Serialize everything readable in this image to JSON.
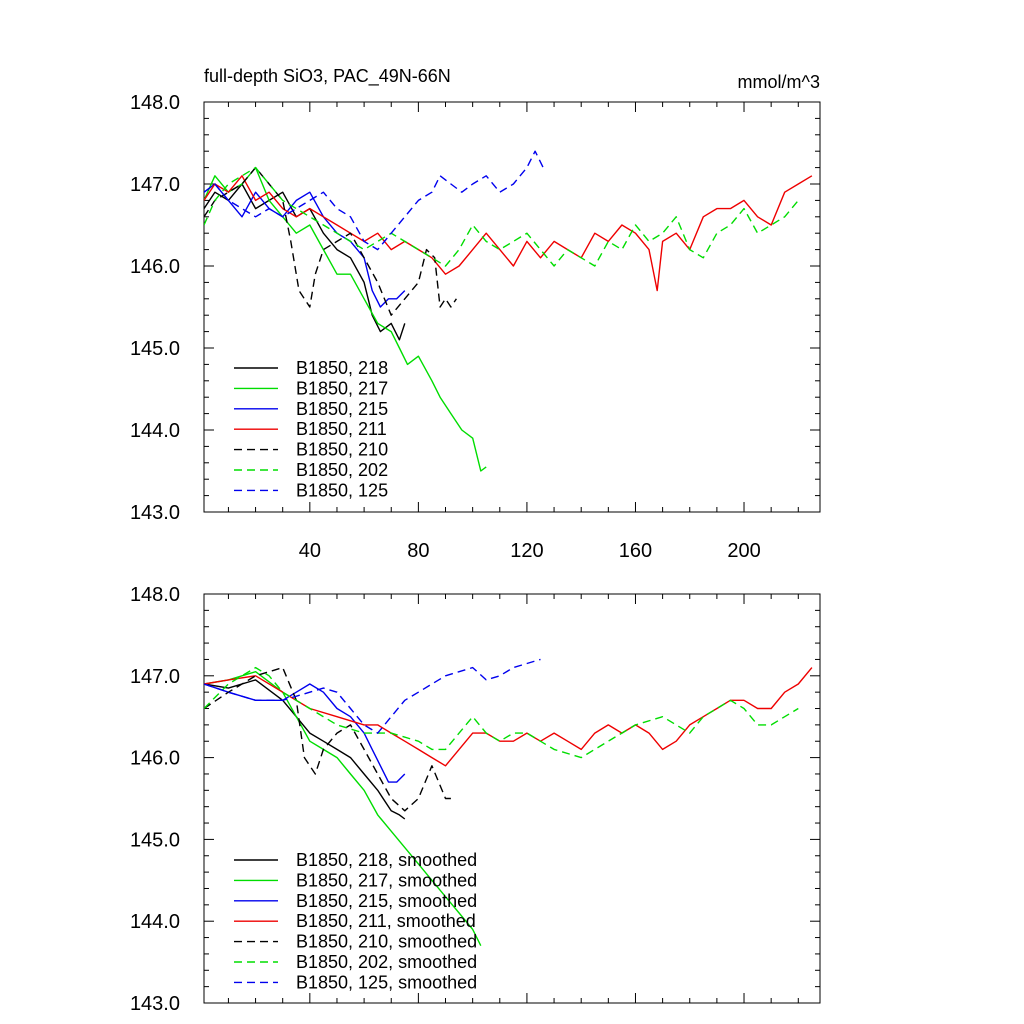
{
  "chart_data": [
    {
      "type": "line",
      "title": "full-depth SiO3, PAC_49N-66N",
      "units_label": "mmol/m^3",
      "xlim": [
        1,
        228
      ],
      "ylim": [
        143.0,
        148.0
      ],
      "x_ticks": [
        40,
        80,
        120,
        160,
        200
      ],
      "x_tick_labels": [
        "40",
        "80",
        "120",
        "160",
        "200"
      ],
      "y_ticks": [
        143.0,
        144.0,
        145.0,
        146.0,
        147.0,
        148.0
      ],
      "y_tick_labels": [
        "143.0",
        "144.0",
        "145.0",
        "146.0",
        "147.0",
        "148.0"
      ],
      "legend_position": "bottom-left",
      "series": [
        {
          "name": "B1850, 218",
          "color": "#000000",
          "dash": "solid",
          "x": [
            1,
            5,
            10,
            15,
            20,
            25,
            30,
            35,
            40,
            45,
            50,
            55,
            60,
            63,
            66,
            70,
            73,
            75
          ],
          "values": [
            146.7,
            146.9,
            146.8,
            147.0,
            146.7,
            146.8,
            146.9,
            146.6,
            146.7,
            146.4,
            146.2,
            146.1,
            145.8,
            145.4,
            145.2,
            145.3,
            145.1,
            145.3
          ]
        },
        {
          "name": "B1850, 217",
          "color": "#00dd00",
          "dash": "solid",
          "x": [
            1,
            5,
            10,
            15,
            20,
            25,
            30,
            35,
            40,
            45,
            50,
            55,
            60,
            65,
            70,
            73,
            76,
            80,
            85,
            88,
            92,
            96,
            100,
            103,
            105
          ],
          "values": [
            146.8,
            147.1,
            146.9,
            147.0,
            147.2,
            146.8,
            146.6,
            146.4,
            146.5,
            146.2,
            145.9,
            145.9,
            145.6,
            145.3,
            145.2,
            145.0,
            144.8,
            144.9,
            144.6,
            144.4,
            144.2,
            144.0,
            143.9,
            143.5,
            143.55
          ]
        },
        {
          "name": "B1850, 215",
          "color": "#0000ee",
          "dash": "solid",
          "x": [
            1,
            5,
            10,
            15,
            20,
            25,
            30,
            35,
            40,
            45,
            50,
            55,
            60,
            63,
            66,
            69,
            72,
            75
          ],
          "values": [
            146.9,
            147.0,
            146.8,
            146.6,
            146.9,
            146.7,
            146.6,
            146.8,
            146.9,
            146.6,
            146.4,
            146.3,
            146.1,
            145.7,
            145.5,
            145.6,
            145.6,
            145.7
          ]
        },
        {
          "name": "B1850, 211",
          "color": "#ee0000",
          "dash": "solid",
          "x": [
            1,
            5,
            10,
            15,
            20,
            25,
            30,
            35,
            40,
            45,
            50,
            55,
            60,
            65,
            70,
            75,
            80,
            85,
            90,
            95,
            100,
            105,
            110,
            115,
            120,
            125,
            130,
            135,
            140,
            145,
            150,
            155,
            160,
            165,
            168,
            170,
            175,
            180,
            185,
            190,
            195,
            200,
            205,
            210,
            215,
            220,
            225
          ],
          "values": [
            146.8,
            147.0,
            146.9,
            147.1,
            146.8,
            146.9,
            146.7,
            146.6,
            146.7,
            146.6,
            146.5,
            146.4,
            146.3,
            146.4,
            146.2,
            146.3,
            146.2,
            146.1,
            145.9,
            146.0,
            146.2,
            146.4,
            146.2,
            146.0,
            146.3,
            146.1,
            146.3,
            146.2,
            146.1,
            146.4,
            146.3,
            146.5,
            146.4,
            146.2,
            145.7,
            146.3,
            146.4,
            146.2,
            146.6,
            146.7,
            146.7,
            146.8,
            146.6,
            146.5,
            146.9,
            147.0,
            147.1
          ]
        },
        {
          "name": "B1850, 210",
          "color": "#000000",
          "dash": "dashed",
          "x": [
            1,
            5,
            10,
            15,
            20,
            25,
            30,
            33,
            36,
            40,
            42,
            45,
            50,
            55,
            60,
            65,
            70,
            75,
            80,
            83,
            86,
            88,
            90,
            92,
            94
          ],
          "values": [
            146.6,
            146.8,
            146.9,
            147.0,
            147.2,
            147.0,
            146.8,
            146.3,
            145.7,
            145.5,
            145.9,
            146.2,
            146.3,
            146.4,
            146.1,
            145.8,
            145.4,
            145.6,
            145.8,
            146.2,
            146.1,
            145.5,
            145.6,
            145.5,
            145.6
          ]
        },
        {
          "name": "B1850, 202",
          "color": "#00dd00",
          "dash": "dashed",
          "x": [
            1,
            5,
            10,
            15,
            20,
            25,
            30,
            35,
            40,
            45,
            50,
            55,
            60,
            65,
            70,
            75,
            80,
            85,
            90,
            95,
            100,
            105,
            110,
            115,
            120,
            125,
            130,
            135,
            140,
            145,
            150,
            155,
            160,
            165,
            170,
            175,
            180,
            185,
            190,
            195,
            200,
            205,
            210,
            215,
            220
          ],
          "values": [
            146.5,
            146.8,
            147.0,
            147.1,
            147.2,
            147.0,
            146.8,
            146.7,
            146.6,
            146.5,
            146.4,
            146.3,
            146.2,
            146.3,
            146.4,
            146.3,
            146.2,
            146.1,
            146.0,
            146.2,
            146.5,
            146.3,
            146.2,
            146.3,
            146.4,
            146.2,
            146.0,
            146.2,
            146.1,
            146.0,
            146.3,
            146.2,
            146.5,
            146.3,
            146.4,
            146.6,
            146.2,
            146.1,
            146.4,
            146.5,
            146.7,
            146.4,
            146.5,
            146.6,
            146.8
          ]
        },
        {
          "name": "B1850, 125",
          "color": "#0000ee",
          "dash": "dashed",
          "x": [
            1,
            5,
            10,
            15,
            20,
            25,
            30,
            35,
            40,
            45,
            50,
            55,
            60,
            65,
            70,
            75,
            80,
            85,
            88,
            92,
            96,
            100,
            105,
            110,
            115,
            120,
            123,
            126
          ],
          "values": [
            146.9,
            147.0,
            146.8,
            146.7,
            146.6,
            146.7,
            146.6,
            146.7,
            146.8,
            146.9,
            146.7,
            146.6,
            146.3,
            146.2,
            146.4,
            146.6,
            146.8,
            146.9,
            147.1,
            147.0,
            146.9,
            147.0,
            147.1,
            146.9,
            147.0,
            147.2,
            147.4,
            147.2
          ]
        }
      ]
    },
    {
      "type": "line",
      "title": "",
      "xlim": [
        1,
        228
      ],
      "ylim": [
        143.0,
        148.0
      ],
      "x_ticks": [
        40,
        80,
        120,
        160,
        200
      ],
      "y_ticks": [
        143.0,
        144.0,
        145.0,
        146.0,
        147.0,
        148.0
      ],
      "y_tick_labels": [
        "143.0",
        "144.0",
        "145.0",
        "146.0",
        "147.0",
        "148.0"
      ],
      "legend_position": "bottom-left",
      "series": [
        {
          "name": "B1850, 218, smoothed",
          "color": "#000000",
          "dash": "solid",
          "x": [
            1,
            10,
            20,
            30,
            35,
            40,
            45,
            50,
            55,
            60,
            65,
            70,
            73,
            75
          ],
          "values": [
            146.9,
            146.85,
            146.95,
            146.7,
            146.5,
            146.3,
            146.2,
            146.1,
            146.0,
            145.8,
            145.6,
            145.35,
            145.3,
            145.25
          ]
        },
        {
          "name": "B1850, 217",
          "color": "#00dd00",
          "dash": "solid",
          "display_name": "B1850, 217, smoothed",
          "x": [
            1,
            10,
            20,
            30,
            35,
            40,
            45,
            50,
            55,
            60,
            65,
            70,
            75,
            80,
            85,
            90,
            95,
            100,
            103
          ],
          "values": [
            146.9,
            146.95,
            147.05,
            146.8,
            146.5,
            146.2,
            146.1,
            146.0,
            145.8,
            145.6,
            145.3,
            145.1,
            144.9,
            144.7,
            144.5,
            144.3,
            144.1,
            143.9,
            143.7
          ]
        },
        {
          "name": "B1850, 215, smoothed",
          "color": "#0000ee",
          "dash": "solid",
          "x": [
            1,
            10,
            20,
            30,
            35,
            40,
            45,
            50,
            55,
            60,
            63,
            66,
            69,
            72,
            75
          ],
          "values": [
            146.9,
            146.8,
            146.7,
            146.7,
            146.8,
            146.9,
            146.8,
            146.6,
            146.5,
            146.3,
            146.1,
            145.9,
            145.7,
            145.7,
            145.8
          ]
        },
        {
          "name": "B1850, 211, smoothed",
          "color": "#ee0000",
          "dash": "solid",
          "x": [
            1,
            10,
            20,
            30,
            40,
            50,
            60,
            65,
            70,
            75,
            80,
            85,
            90,
            95,
            100,
            105,
            110,
            115,
            120,
            125,
            130,
            135,
            140,
            145,
            150,
            155,
            160,
            165,
            170,
            175,
            180,
            185,
            190,
            195,
            200,
            205,
            210,
            215,
            220,
            225
          ],
          "values": [
            146.9,
            146.95,
            147.0,
            146.8,
            146.6,
            146.5,
            146.4,
            146.4,
            146.3,
            146.2,
            146.1,
            146.0,
            145.9,
            146.1,
            146.3,
            146.3,
            146.2,
            146.2,
            146.3,
            146.2,
            146.3,
            146.2,
            146.1,
            146.3,
            146.4,
            146.3,
            146.4,
            146.3,
            146.1,
            146.2,
            146.4,
            146.5,
            146.6,
            146.7,
            146.7,
            146.6,
            146.6,
            146.8,
            146.9,
            147.1
          ]
        },
        {
          "name": "B1850, 210, smoothed",
          "color": "#000000",
          "dash": "dashed",
          "x": [
            1,
            10,
            20,
            30,
            35,
            38,
            42,
            45,
            50,
            55,
            60,
            65,
            70,
            75,
            80,
            85,
            90,
            92
          ],
          "values": [
            146.6,
            146.8,
            147.0,
            147.1,
            146.7,
            146.0,
            145.8,
            146.1,
            146.3,
            146.4,
            146.1,
            145.8,
            145.5,
            145.35,
            145.5,
            145.9,
            145.5,
            145.5
          ]
        },
        {
          "name": "B1850, 202, smoothed",
          "color": "#00dd00",
          "dash": "dashed",
          "x": [
            1,
            10,
            20,
            25,
            30,
            40,
            50,
            60,
            70,
            80,
            85,
            90,
            95,
            100,
            105,
            110,
            115,
            120,
            130,
            140,
            150,
            160,
            170,
            175,
            180,
            185,
            190,
            195,
            200,
            205,
            210,
            215,
            220
          ],
          "values": [
            146.6,
            146.9,
            147.1,
            147.0,
            146.8,
            146.6,
            146.4,
            146.3,
            146.3,
            146.2,
            146.1,
            146.1,
            146.3,
            146.5,
            146.3,
            146.2,
            146.3,
            146.3,
            146.1,
            146.0,
            146.2,
            146.4,
            146.5,
            146.4,
            146.3,
            146.5,
            146.6,
            146.7,
            146.6,
            146.4,
            146.4,
            146.5,
            146.6
          ]
        },
        {
          "name": "B1850, 125, smoothed",
          "color": "#0000ee",
          "dash": "dashed",
          "x": [
            1,
            10,
            20,
            30,
            40,
            45,
            50,
            55,
            60,
            65,
            70,
            75,
            80,
            85,
            90,
            95,
            100,
            105,
            110,
            115,
            120,
            125
          ],
          "values": [
            146.9,
            146.8,
            146.7,
            146.7,
            146.8,
            146.85,
            146.8,
            146.6,
            146.4,
            146.3,
            146.5,
            146.7,
            146.8,
            146.9,
            147.0,
            147.05,
            147.1,
            146.95,
            147.0,
            147.1,
            147.15,
            147.2
          ]
        }
      ]
    }
  ]
}
